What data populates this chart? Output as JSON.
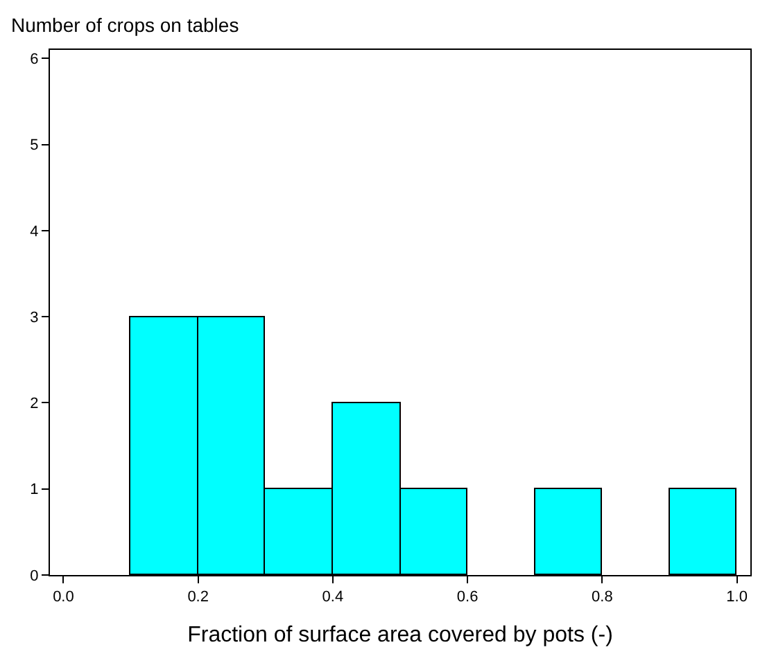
{
  "chart_data": {
    "type": "histogram",
    "ylabel": "Number of crops on tables",
    "xlabel": "Fraction of surface area covered by pots (-)",
    "bins": [
      0.1,
      0.2,
      0.3,
      0.4,
      0.5,
      0.6,
      0.7,
      0.8,
      0.9,
      1.0
    ],
    "values": [
      3,
      3,
      1,
      2,
      1,
      0,
      1,
      0,
      1
    ],
    "color": "#00ffff",
    "xlim": [
      -0.02,
      1.02
    ],
    "xticks": [
      {
        "value": 0,
        "label": "0.0"
      },
      0.2,
      0.4,
      0.6,
      0.8,
      {
        "value": 1,
        "label": "1.0"
      }
    ],
    "ylim": [
      0,
      6.1
    ],
    "yticks": [
      0,
      1,
      2,
      3,
      4,
      5,
      6
    ],
    "legend": false
  }
}
